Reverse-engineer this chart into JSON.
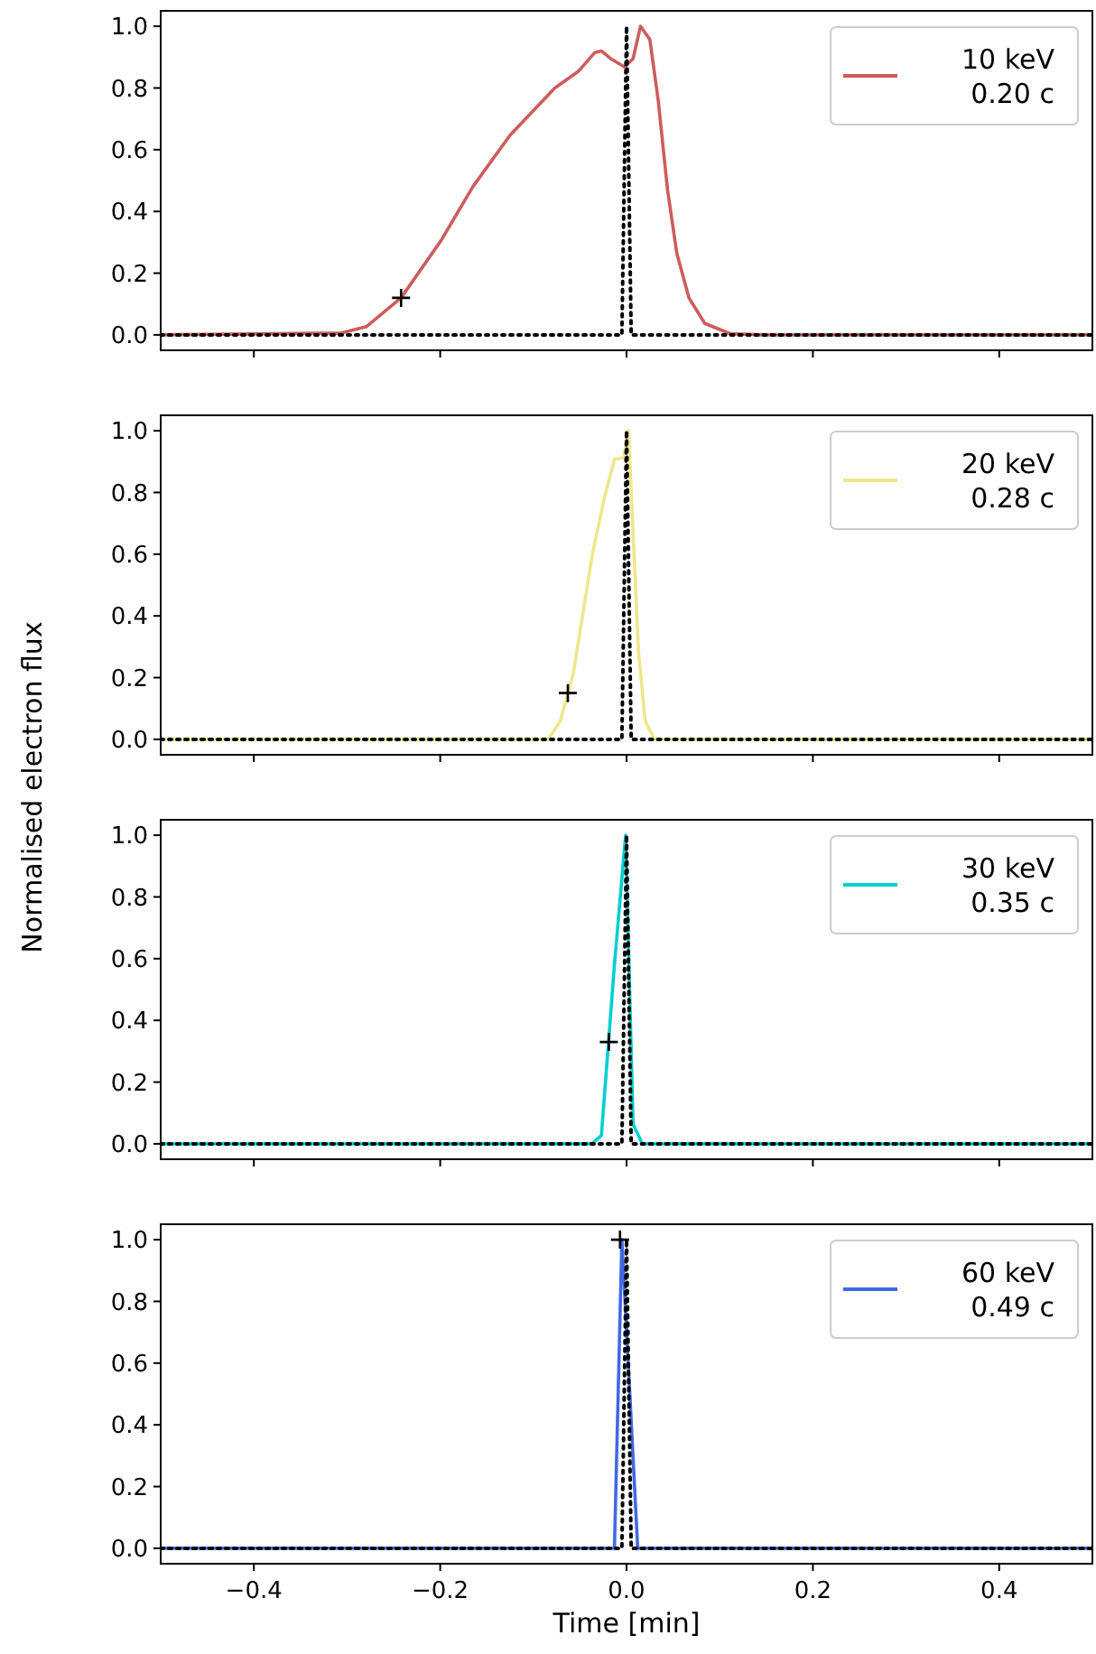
{
  "chart_data": [
    {
      "type": "line",
      "xlim": [
        -0.5,
        0.5
      ],
      "xticks": [
        {
          "value": -0.4,
          "label": null
        },
        {
          "value": -0.2,
          "label": null
        },
        {
          "value": 0,
          "label": null
        },
        {
          "value": 0.2,
          "label": null
        },
        {
          "value": 0.4,
          "label": null
        }
      ],
      "ylim": [
        -0.05,
        1.05
      ],
      "yticks": [
        {
          "value": 0,
          "label": "0.0"
        },
        {
          "value": 0.2,
          "label": "0.2"
        },
        {
          "value": 0.4,
          "label": "0.4"
        },
        {
          "value": 0.6,
          "label": "0.6"
        },
        {
          "value": 0.8,
          "label": "0.8"
        },
        {
          "value": 1,
          "label": "1.0"
        }
      ],
      "tick_labels": "y",
      "legend": "top right",
      "grid": false,
      "series": [
        {
          "name": "10 keV\n0.20 c",
          "color": "#cd5c5c",
          "x": [
            -0.5,
            -0.306,
            -0.279,
            -0.242,
            -0.199,
            -0.165,
            -0.125,
            -0.077,
            -0.052,
            -0.034,
            -0.027,
            -0.017,
            -0.002,
            0.007,
            0.015,
            0.025,
            0.034,
            0.044,
            0.054,
            0.067,
            0.084,
            0.111,
            0.145,
            0.5
          ],
          "values": [
            0,
            0.006,
            0.027,
            0.12,
            0.306,
            0.48,
            0.647,
            0.8,
            0.853,
            0.915,
            0.92,
            0.895,
            0.868,
            0.895,
            1.0,
            0.957,
            0.76,
            0.47,
            0.264,
            0.12,
            0.037,
            0.004,
            0,
            0
          ]
        },
        {
          "color": "#000000",
          "line_style": "dotted",
          "x": [
            -0.5,
            -0.005,
            0,
            0.005,
            0.5
          ],
          "values": [
            0,
            0,
            1,
            0,
            0
          ]
        },
        {
          "type": "scatter",
          "marker": "cross",
          "color": "#000000",
          "x": [
            -0.242
          ],
          "values": [
            0.12
          ]
        }
      ]
    },
    {
      "type": "line",
      "ylabel": "Normalised electron flux",
      "xlim": [
        -0.5,
        0.5
      ],
      "xticks": [
        {
          "value": -0.4,
          "label": null
        },
        {
          "value": -0.2,
          "label": null
        },
        {
          "value": 0,
          "label": null
        },
        {
          "value": 0.2,
          "label": null
        },
        {
          "value": 0.4,
          "label": null
        }
      ],
      "ylim": [
        -0.05,
        1.05
      ],
      "yticks": [
        {
          "value": 0,
          "label": "0.0"
        },
        {
          "value": 0.2,
          "label": "0.2"
        },
        {
          "value": 0.4,
          "label": "0.4"
        },
        {
          "value": 0.6,
          "label": "0.6"
        },
        {
          "value": 0.8,
          "label": "0.8"
        },
        {
          "value": 1,
          "label": "1.0"
        }
      ],
      "tick_labels": "y",
      "legend": "top right",
      "grid": false,
      "series": [
        {
          "name": "20 keV\n0.28 c",
          "color": "#f0e68c",
          "x": [
            -0.5,
            -0.084,
            -0.071,
            -0.057,
            -0.037,
            -0.024,
            -0.013,
            -0.003,
            0.002,
            0.013,
            0.02,
            0.03,
            0.5
          ],
          "values": [
            0,
            0,
            0.06,
            0.215,
            0.595,
            0.78,
            0.907,
            0.913,
            1.0,
            0.277,
            0.06,
            0,
            0
          ]
        },
        {
          "color": "#000000",
          "line_style": "dotted",
          "x": [
            -0.5,
            -0.005,
            0,
            0.005,
            0.5
          ],
          "values": [
            0,
            0,
            1,
            0,
            0
          ]
        },
        {
          "type": "scatter",
          "marker": "cross",
          "color": "#000000",
          "x": [
            -0.063
          ],
          "values": [
            0.15
          ]
        }
      ]
    },
    {
      "type": "line",
      "xlim": [
        -0.5,
        0.5
      ],
      "xticks": [
        {
          "value": -0.4,
          "label": null
        },
        {
          "value": -0.2,
          "label": null
        },
        {
          "value": 0,
          "label": null
        },
        {
          "value": 0.2,
          "label": null
        },
        {
          "value": 0.4,
          "label": null
        }
      ],
      "ylim": [
        -0.05,
        1.05
      ],
      "yticks": [
        {
          "value": 0,
          "label": "0.0"
        },
        {
          "value": 0.2,
          "label": "0.2"
        },
        {
          "value": 0.4,
          "label": "0.4"
        },
        {
          "value": 0.6,
          "label": "0.6"
        },
        {
          "value": 0.8,
          "label": "0.8"
        },
        {
          "value": 1,
          "label": "1.0"
        }
      ],
      "tick_labels": "y",
      "legend": "top right",
      "grid": false,
      "series": [
        {
          "name": "30 keV\n0.35 c",
          "color": "#00ced1",
          "x": [
            -0.5,
            -0.037,
            -0.027,
            -0.013,
            -0.001,
            0.007,
            0.017,
            0.5
          ],
          "values": [
            0,
            0,
            0.027,
            0.58,
            1.0,
            0.064,
            0,
            0
          ]
        },
        {
          "color": "#000000",
          "line_style": "dotted",
          "x": [
            -0.5,
            -0.005,
            0,
            0.005,
            0.5
          ],
          "values": [
            0,
            0,
            1,
            0,
            0
          ]
        },
        {
          "type": "scatter",
          "marker": "cross",
          "color": "#000000",
          "x": [
            -0.019
          ],
          "values": [
            0.33
          ]
        }
      ]
    },
    {
      "type": "line",
      "xlabel": "Time [min]",
      "xlim": [
        -0.5,
        0.5
      ],
      "xticks": [
        {
          "value": -0.4,
          "label": "−0.4"
        },
        {
          "value": -0.2,
          "label": "−0.2"
        },
        {
          "value": 0,
          "label": "0.0"
        },
        {
          "value": 0.2,
          "label": "0.2"
        },
        {
          "value": 0.4,
          "label": "0.4"
        }
      ],
      "ylim": [
        -0.05,
        1.05
      ],
      "yticks": [
        {
          "value": 0,
          "label": "0.0"
        },
        {
          "value": 0.2,
          "label": "0.2"
        },
        {
          "value": 0.4,
          "label": "0.4"
        },
        {
          "value": 0.6,
          "label": "0.6"
        },
        {
          "value": 0.8,
          "label": "0.8"
        },
        {
          "value": 1,
          "label": "1.0"
        }
      ],
      "legend": "top right",
      "grid": false,
      "series": [
        {
          "name": "60 keV\n0.49 c",
          "color": "#4169e1",
          "x": [
            -0.5,
            -0.013,
            -0.005,
            0.012,
            0.5
          ],
          "values": [
            0,
            0,
            1.0,
            0,
            0
          ]
        },
        {
          "color": "#000000",
          "line_style": "dotted",
          "x": [
            -0.5,
            -0.005,
            0,
            0.005,
            0.5
          ],
          "values": [
            0,
            0,
            1,
            0,
            0
          ]
        },
        {
          "type": "scatter",
          "marker": "cross",
          "color": "#000000",
          "x": [
            -0.007
          ],
          "values": [
            1.0
          ]
        }
      ]
    }
  ]
}
